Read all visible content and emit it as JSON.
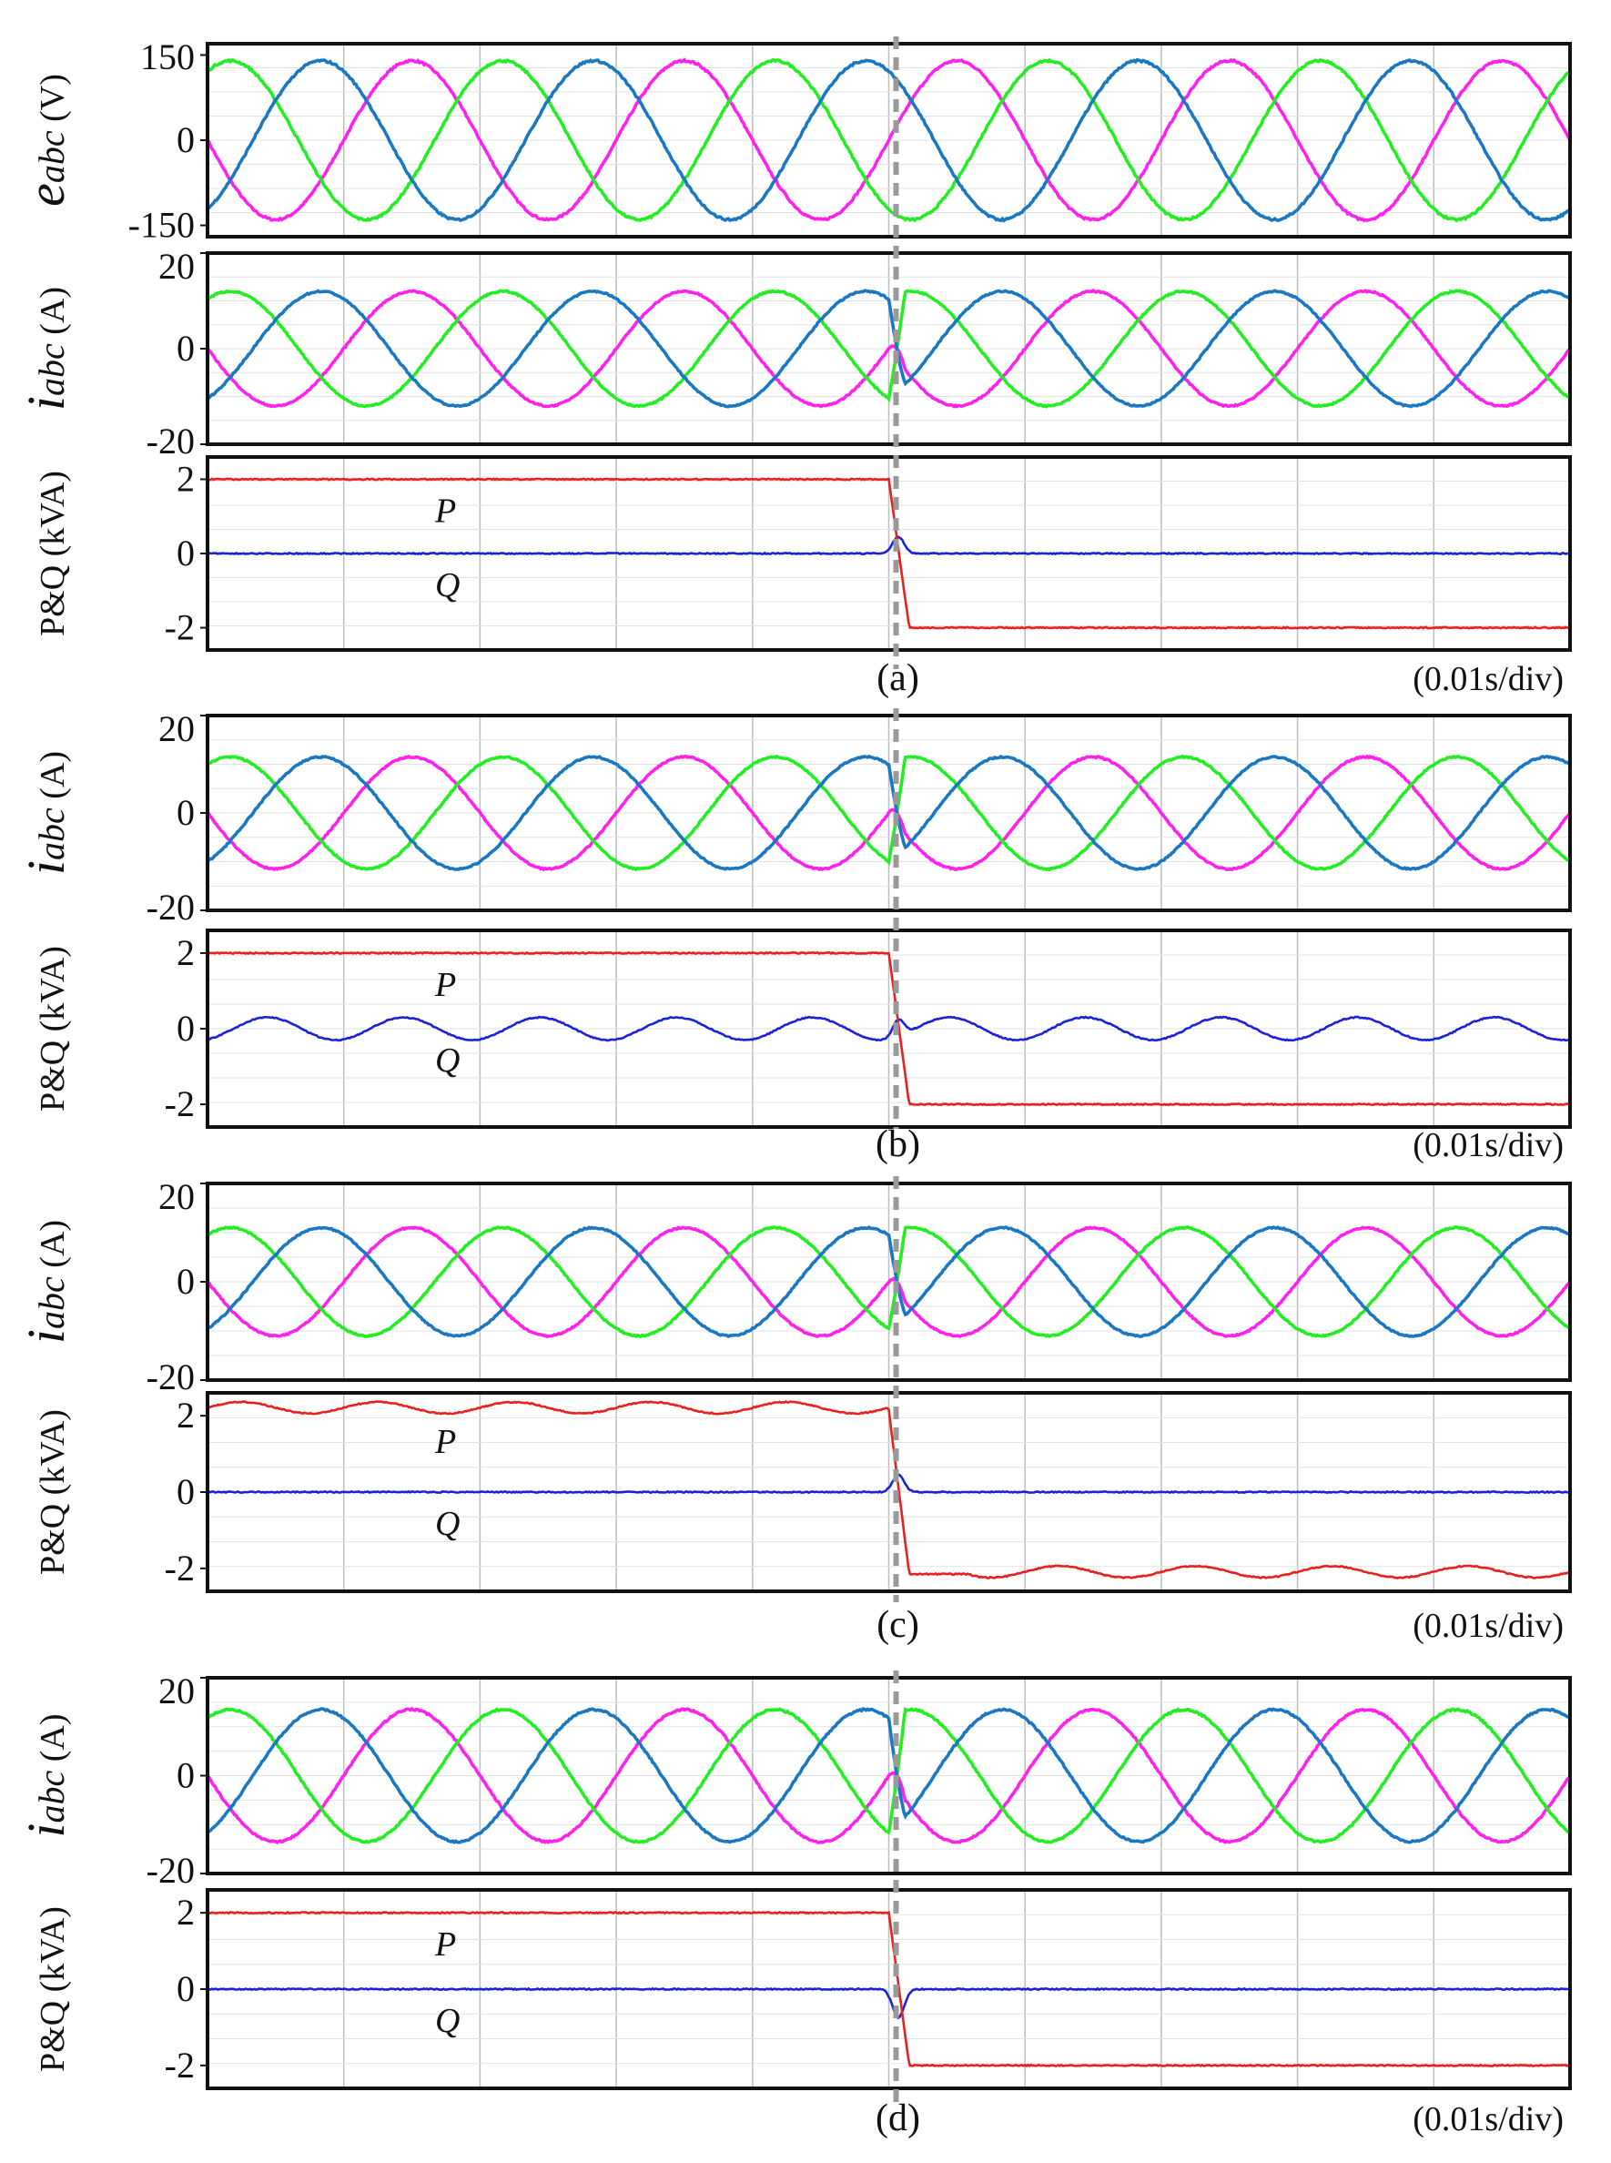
{
  "figure": {
    "time_scale_label": "(0.01s/div)",
    "transition_division": 5,
    "divisions": 10,
    "colors": {
      "phase_a": "#ff22ee",
      "phase_b": "#22ee22",
      "phase_c": "#1a78c2",
      "P": "#e8201e",
      "Q": "#1a22d8",
      "marker": "#9a9a9a",
      "grid": "#bdbdbd"
    }
  },
  "chart_data": [
    {
      "type": "line",
      "panel": "a",
      "quantity": "voltage",
      "ylabel_main": "e",
      "ylabel_sub": "abc",
      "ylabel_unit": " (V)",
      "ylim": [
        -170,
        170
      ],
      "ticks": [
        "150",
        "0",
        "-150"
      ],
      "tick_values": [
        150,
        0,
        -150
      ],
      "series": [
        {
          "name": "e_a",
          "amplitude": 140,
          "phase_deg": 180
        },
        {
          "name": "e_b",
          "amplitude": 140,
          "phase_deg": 60
        },
        {
          "name": "e_c",
          "amplitude": 140,
          "phase_deg": -60
        }
      ],
      "cycles": 5
    },
    {
      "type": "line",
      "panel": "a",
      "quantity": "current",
      "ylabel_main": "i",
      "ylabel_sub": "abc",
      "ylabel_unit": " (A)",
      "ylim": [
        -20,
        20
      ],
      "ticks": [
        "20",
        "0",
        "-20"
      ],
      "tick_values": [
        20,
        0,
        -20
      ],
      "series": [
        {
          "name": "i_a",
          "amplitude": 12,
          "phase_deg": 180
        },
        {
          "name": "i_b",
          "amplitude": 12,
          "phase_deg": 60
        },
        {
          "name": "i_c",
          "amplitude": 12,
          "phase_deg": -60
        }
      ],
      "cycles": 5,
      "reversal": true
    },
    {
      "type": "line",
      "panel": "a",
      "quantity": "power",
      "ylabel": "P&Q (kVA)",
      "ylim": [
        -2.6,
        2.6
      ],
      "ticks": [
        "2",
        "0",
        "-2"
      ],
      "tick_values": [
        2,
        0,
        -2
      ],
      "P_before": 2,
      "P_after": -2,
      "Q_level": 0,
      "Q_bump": 0.45,
      "P_ripple": 0,
      "Q_ripple": 0,
      "P_label": "P",
      "Q_label": "Q",
      "caption": "(a)"
    },
    {
      "type": "line",
      "panel": "b",
      "quantity": "current",
      "ylabel_main": "i",
      "ylabel_sub": "abc",
      "ylabel_unit": " (A)",
      "ylim": [
        -20,
        20
      ],
      "ticks": [
        "20",
        "0",
        "-20"
      ],
      "tick_values": [
        20,
        0,
        -20
      ],
      "series": [
        {
          "name": "i_a",
          "amplitude": 11.5,
          "phase_deg": 180
        },
        {
          "name": "i_b",
          "amplitude": 11.5,
          "phase_deg": 60
        },
        {
          "name": "i_c",
          "amplitude": 11.5,
          "phase_deg": -60
        }
      ],
      "cycles": 5,
      "reversal": true
    },
    {
      "type": "line",
      "panel": "b",
      "quantity": "power",
      "ylabel": "P&Q (kVA)",
      "ylim": [
        -2.6,
        2.6
      ],
      "ticks": [
        "2",
        "0",
        "-2"
      ],
      "tick_values": [
        2,
        0,
        -2
      ],
      "P_before": 2,
      "P_after": -2,
      "Q_level": 0,
      "Q_bump": 0.45,
      "P_ripple": 0,
      "Q_ripple": 0.3,
      "P_label": "P",
      "Q_label": "Q",
      "caption": "(b)"
    },
    {
      "type": "line",
      "panel": "c",
      "quantity": "current",
      "ylabel_main": "i",
      "ylabel_sub": "abc",
      "ylabel_unit": " (A)",
      "ylim": [
        -20,
        20
      ],
      "ticks": [
        "20",
        "0",
        "-20"
      ],
      "tick_values": [
        20,
        0,
        -20
      ],
      "series": [
        {
          "name": "i_a",
          "amplitude": 11,
          "phase_deg": 180
        },
        {
          "name": "i_b",
          "amplitude": 11,
          "phase_deg": 60
        },
        {
          "name": "i_c",
          "amplitude": 11,
          "phase_deg": -60
        }
      ],
      "cycles": 5,
      "reversal": true
    },
    {
      "type": "line",
      "panel": "c",
      "quantity": "power",
      "ylabel": "P&Q (kVA)",
      "ylim": [
        -2.6,
        2.6
      ],
      "ticks": [
        "2",
        "0",
        "-2"
      ],
      "tick_values": [
        2,
        0,
        -2
      ],
      "P_before": 2.15,
      "P_after": -2.15,
      "Q_level": 0,
      "Q_bump": 0.45,
      "P_ripple": 0.3,
      "Q_ripple": 0,
      "P_label": "P",
      "Q_label": "Q",
      "caption": "(c)"
    },
    {
      "type": "line",
      "panel": "d",
      "quantity": "current",
      "ylabel_main": "i",
      "ylabel_sub": "abc",
      "ylabel_unit": " (A)",
      "ylim": [
        -20,
        20
      ],
      "ticks": [
        "20",
        "0",
        "-20"
      ],
      "tick_values": [
        20,
        0,
        -20
      ],
      "series": [
        {
          "name": "i_a",
          "amplitude": 13.5,
          "phase_deg": 180
        },
        {
          "name": "i_b",
          "amplitude": 13.5,
          "phase_deg": 60
        },
        {
          "name": "i_c",
          "amplitude": 13.5,
          "phase_deg": -60
        }
      ],
      "cycles": 5,
      "reversal": true
    },
    {
      "type": "line",
      "panel": "d",
      "quantity": "power",
      "ylabel": "P&Q (kVA)",
      "ylim": [
        -2.6,
        2.6
      ],
      "ticks": [
        "2",
        "0",
        "-2"
      ],
      "tick_values": [
        2,
        0,
        -2
      ],
      "P_before": 2,
      "P_after": -2,
      "Q_level": 0,
      "Q_bump": -0.75,
      "P_ripple": 0,
      "Q_ripple": 0,
      "P_label": "P",
      "Q_label": "Q",
      "caption": "(d)"
    }
  ]
}
